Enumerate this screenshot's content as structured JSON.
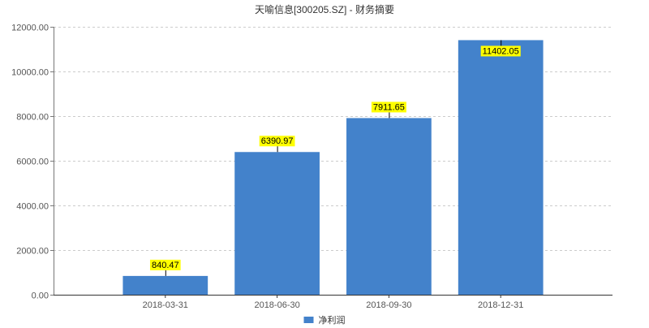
{
  "chart_data": {
    "type": "bar",
    "title": "天喻信息[300205.SZ] - 财务摘要",
    "categories": [
      "2018-03-31",
      "2018-06-30",
      "2018-09-30",
      "2018-12-31"
    ],
    "series": [
      {
        "name": "净利润",
        "values": [
          840.47,
          6390.97,
          7911.65,
          11402.05
        ],
        "color": "#4382cb"
      }
    ],
    "yticks": [
      "0.00",
      "2000.00",
      "4000.00",
      "6000.00",
      "8000.00",
      "10000.00",
      "12000.00"
    ],
    "ylim": [
      0,
      12000
    ],
    "grid": true,
    "data_labels": true,
    "data_label_background": "#ffff00",
    "legend_position": "bottom"
  }
}
